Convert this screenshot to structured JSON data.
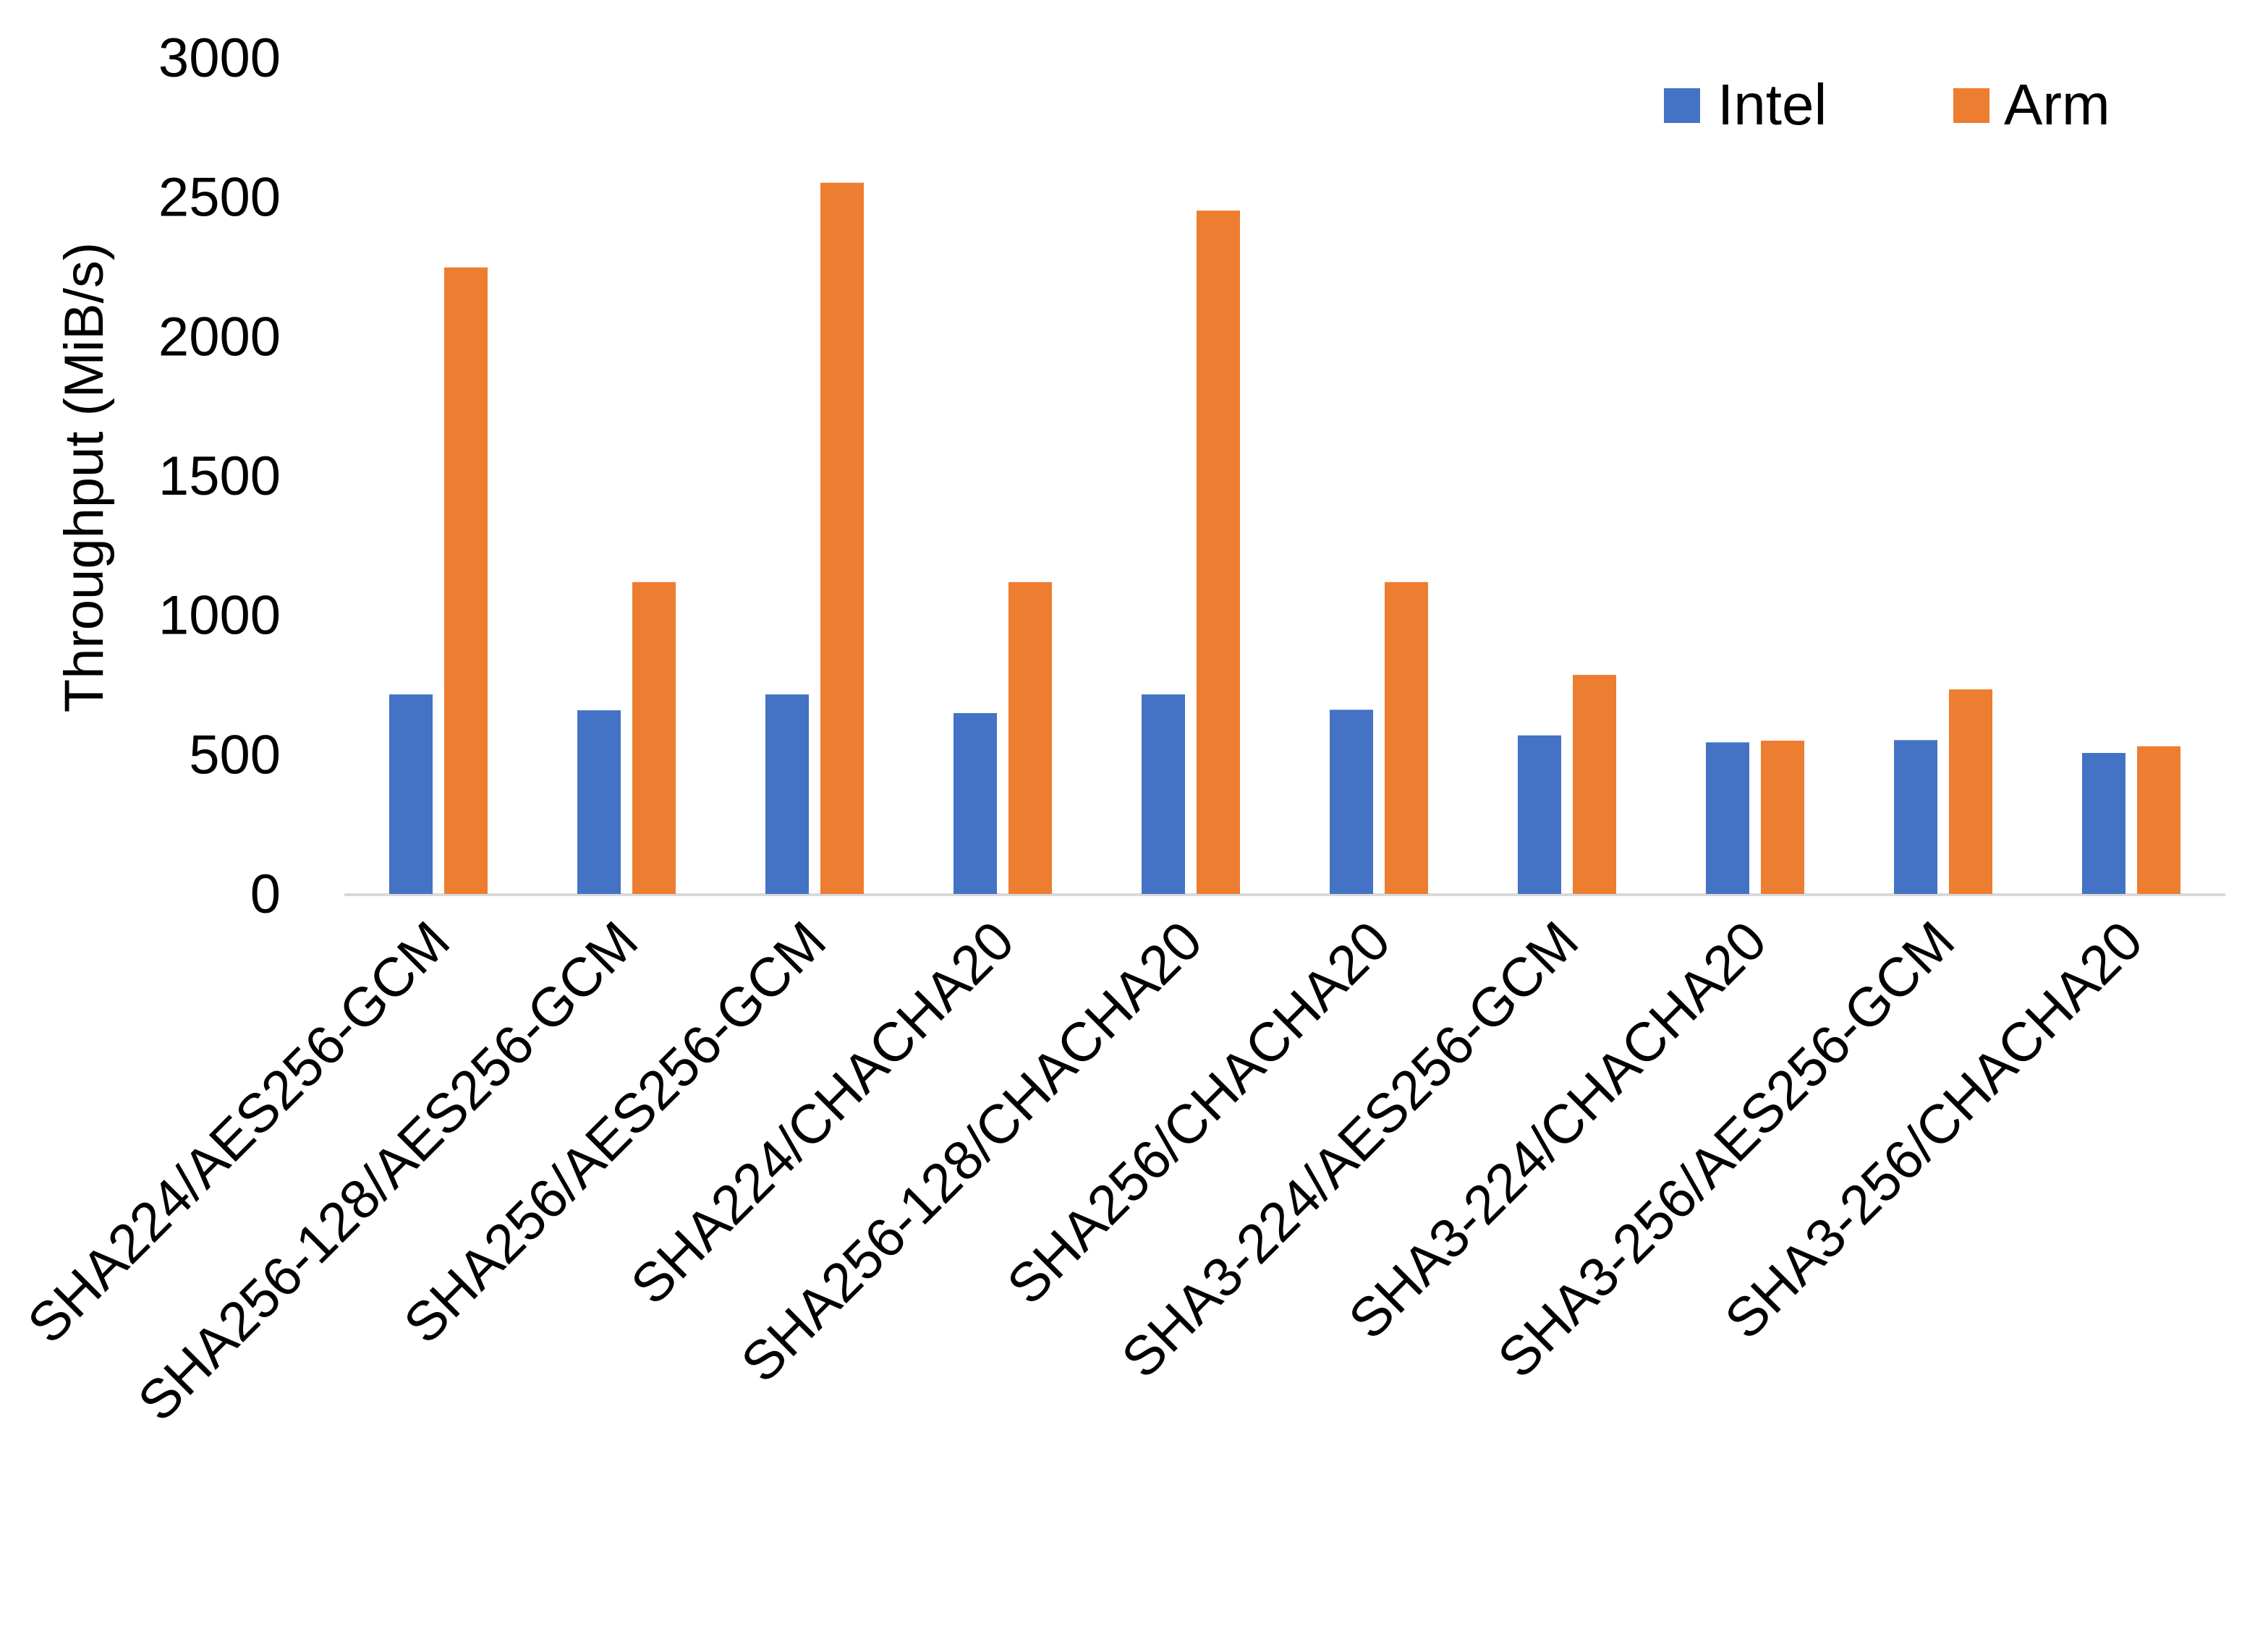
{
  "chart_data": {
    "type": "bar",
    "title": "",
    "xlabel": "",
    "ylabel": "Throughput (MiB/s)",
    "ylim": [
      0,
      3000
    ],
    "yticks": [
      "0",
      "500",
      "1000",
      "1500",
      "2000",
      "2500",
      "3000"
    ],
    "grid": false,
    "legend": "top-right",
    "categories": [
      "SHA224/AES256-GCM",
      "SHA256-128/AES256-GCM",
      "SHA256/AES256-GCM",
      "SHA224/CHACHA20",
      "SHA256-128/CHACHA20",
      "SHA256/CHACHA20",
      "SHA3-224/AES256-GCM",
      "SHA3-224/CHACHA20",
      "SHA3-256/AES256-GCM",
      "SHA3-256/CHACHA20"
    ],
    "series": [
      {
        "name": "Intel",
        "color": "#4472C4",
        "values": [
          716,
          659,
          716,
          649,
          716,
          661,
          569,
          544,
          552,
          506
        ]
      },
      {
        "name": "Arm",
        "color": "#ED7D31",
        "values": [
          2248,
          1119,
          2552,
          1119,
          2452,
          1119,
          786,
          550,
          734,
          530
        ]
      }
    ]
  }
}
